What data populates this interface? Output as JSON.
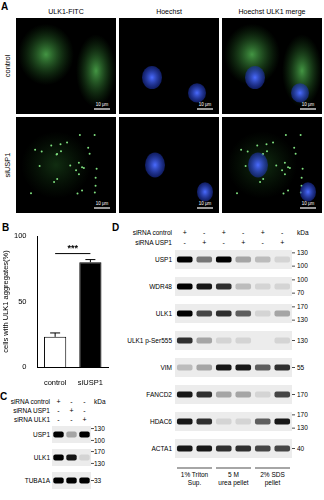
{
  "panel_a": {
    "label": "A",
    "columns": [
      "ULK1-FITC",
      "Hoechst",
      "Hoechst ULK1 merge"
    ],
    "rows": [
      "control",
      "siUSP1"
    ],
    "scale_bar": "10 μm"
  },
  "chart_data": {
    "label": "B",
    "type": "bar",
    "categories": [
      "control",
      "siUSP1"
    ],
    "values": [
      23,
      80
    ],
    "errors": [
      3,
      2
    ],
    "colors": [
      "#ffffff",
      "#000000"
    ],
    "y_label": "cells with ULK1 aggregates(%)",
    "ylim": [
      0,
      100
    ],
    "yticks": [
      0,
      50,
      100
    ],
    "annotation": "***",
    "grid": false
  },
  "panel_c": {
    "label": "C",
    "kda": "kDa",
    "conditions": [
      {
        "name": "siRNA control",
        "lanes": [
          "+",
          "-",
          "-"
        ]
      },
      {
        "name": "siRNA USP1",
        "lanes": [
          "-",
          "+",
          "-"
        ]
      },
      {
        "name": "siRNA ULK1",
        "lanes": [
          "-",
          "-",
          "+"
        ]
      }
    ],
    "blots": [
      {
        "name": "USP1",
        "intensity": [
          1,
          0.3,
          1
        ],
        "markers": [
          130,
          100
        ]
      },
      {
        "name": "ULK1",
        "intensity": [
          1,
          0.9,
          0.1
        ],
        "markers": [
          170,
          130
        ]
      },
      {
        "name": "TUBA1A",
        "intensity": [
          1,
          1,
          1
        ],
        "markers": [
          33
        ]
      }
    ]
  },
  "panel_d": {
    "label": "D",
    "kda": "kDa",
    "conditions": [
      {
        "name": "siRNA control",
        "lanes": [
          "+",
          "-",
          "+",
          "-",
          "+",
          "-"
        ]
      },
      {
        "name": "siRNA USP1",
        "lanes": [
          "-",
          "+",
          "-",
          "+",
          "-",
          "+"
        ]
      }
    ],
    "blots": [
      {
        "name": "USP1",
        "intensity": [
          1,
          0.5,
          1,
          0.3,
          0.2,
          0.1
        ],
        "markers": [
          130,
          100
        ]
      },
      {
        "name": "WDR48",
        "intensity": [
          1,
          0.9,
          0.8,
          0.2,
          0.1,
          0.1
        ],
        "markers": [
          100,
          70
        ]
      },
      {
        "name": "ULK1",
        "intensity": [
          1,
          0.7,
          0.8,
          0.6,
          0.1,
          0.3
        ],
        "markers": [
          170,
          130
        ]
      },
      {
        "name": "ULK1 p-Ser555",
        "intensity": [
          0.8,
          0.3,
          0.1,
          0.1,
          0,
          0.1
        ],
        "markers": [
          130
        ]
      },
      {
        "name": "VIM",
        "intensity": [
          0.2,
          0.3,
          0.9,
          0.9,
          0.6,
          0.8
        ],
        "markers": [
          55
        ]
      },
      {
        "name": "FANCD2",
        "intensity": [
          0.9,
          0.8,
          0.3,
          0.3,
          0.1,
          0.7
        ],
        "markers": [
          170
        ]
      },
      {
        "name": "HDAC6",
        "intensity": [
          0.9,
          0.8,
          0.1,
          0.1,
          0.6,
          0.9
        ],
        "markers": [
          170,
          130
        ]
      },
      {
        "name": "ACTA1",
        "intensity": [
          0.9,
          0.9,
          0.8,
          0.8,
          0.7,
          0.7
        ],
        "markers": [
          40
        ]
      }
    ],
    "fractions": [
      "1% Triton Sup.",
      "5 M urea pellet",
      "2% SDS pellet"
    ]
  }
}
